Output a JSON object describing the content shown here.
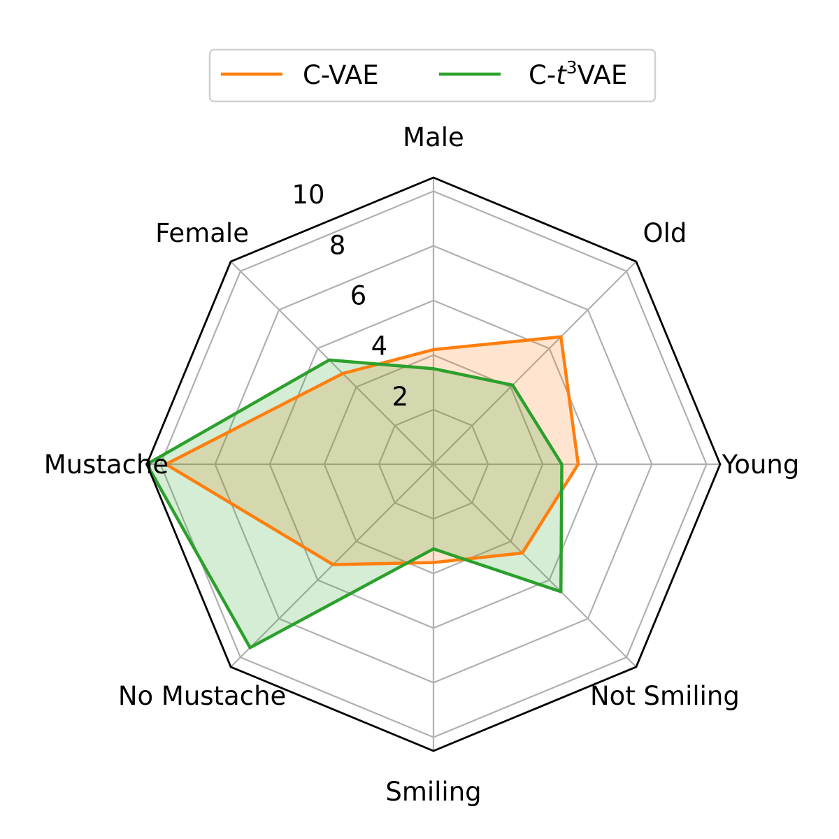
{
  "chart_data": {
    "type": "radar",
    "categories": [
      "Male",
      "Old",
      "Young",
      "Not Smiling",
      "Smiling",
      "No Mustache",
      "Mustache",
      "Female"
    ],
    "radial_ticks": [
      "2",
      "4",
      "6",
      "8",
      "10"
    ],
    "rlim": [
      0,
      10.5
    ],
    "series": [
      {
        "name": "C-VAE",
        "color": "#ff7f0e",
        "values": [
          4.2,
          6.6,
          5.3,
          4.6,
          3.6,
          5.2,
          9.8,
          4.7
        ]
      },
      {
        "name": "C-t³VAE",
        "color": "#2ca02c",
        "values": [
          3.5,
          4.1,
          4.7,
          6.6,
          3.1,
          9.5,
          10.5,
          5.4
        ]
      }
    ],
    "legend": {
      "placement": "top-center",
      "entries": [
        {
          "label": "C-VAE",
          "color": "#ff7f0e"
        },
        {
          "prefix": "C-",
          "italic": "t",
          "sup": "3",
          "suffix": "VAE",
          "color": "#2ca02c"
        }
      ]
    },
    "grid": true
  }
}
